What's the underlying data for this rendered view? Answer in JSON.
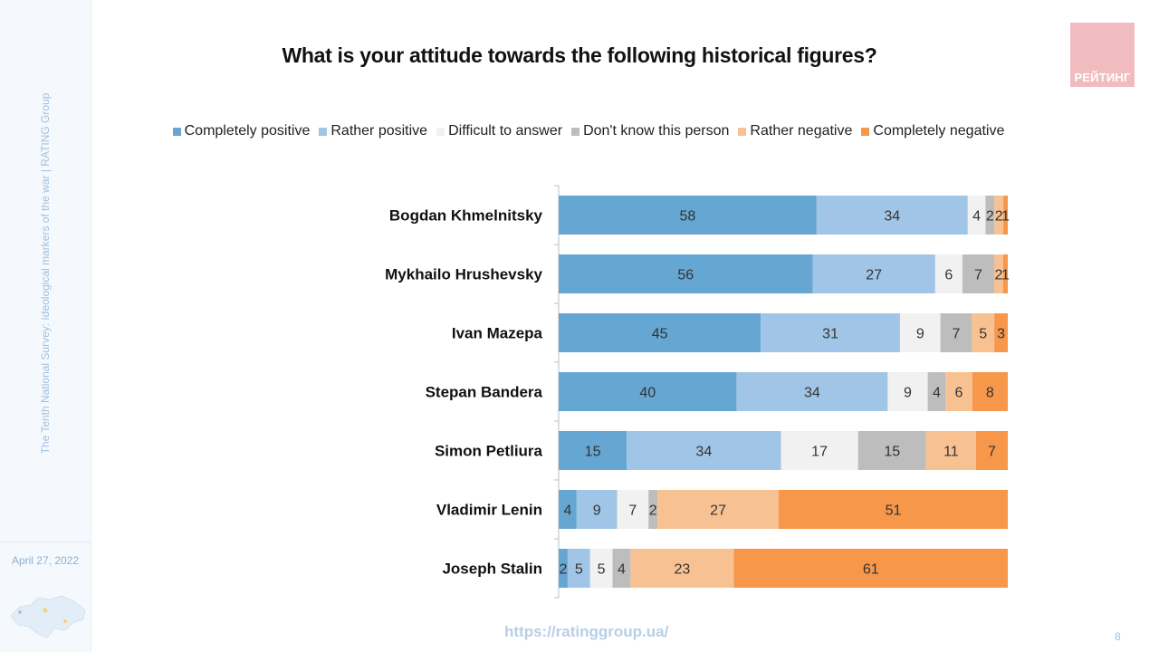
{
  "sidebar": {
    "subtitle": "The Tenth National Survey: Ideological markers of the war | RATING Group",
    "date": "April 27, 2022",
    "map_icon": "ukraine-map-icon"
  },
  "logo": {
    "text": "РЕЙТИНГ",
    "color": "#f1bcbf"
  },
  "footer": {
    "url": "https://ratinggroup.ua/",
    "page_number": "8"
  },
  "chart_data": {
    "type": "bar",
    "orientation": "horizontal",
    "stacked": true,
    "title": "What is your attitude towards the following historical figures?",
    "legend_position": "top",
    "categories": [
      "Bogdan Khmelnitsky",
      "Mykhailo Hrushevsky",
      "Ivan Mazepa",
      "Stepan Bandera",
      "Simon Petliura",
      "Vladimir Lenin",
      "Joseph Stalin"
    ],
    "series": [
      {
        "name": "Completely positive",
        "color": "#65a6d2",
        "values": [
          58,
          56,
          45,
          40,
          15,
          4,
          2
        ]
      },
      {
        "name": "Rather positive",
        "color": "#a0c5e6",
        "values": [
          34,
          27,
          31,
          34,
          34,
          9,
          5
        ]
      },
      {
        "name": "Difficult to answer",
        "color": "#f1f1f1",
        "values": [
          4,
          6,
          9,
          9,
          17,
          7,
          5
        ]
      },
      {
        "name": "Don't know this person",
        "color": "#bdbdbd",
        "values": [
          2,
          7,
          7,
          4,
          15,
          2,
          4
        ]
      },
      {
        "name": "Rather negative",
        "color": "#f8c192",
        "values": [
          2,
          2,
          5,
          6,
          11,
          27,
          23
        ]
      },
      {
        "name": "Completely negative",
        "color": "#f6974a",
        "values": [
          1,
          1,
          3,
          8,
          7,
          51,
          61
        ]
      }
    ]
  }
}
